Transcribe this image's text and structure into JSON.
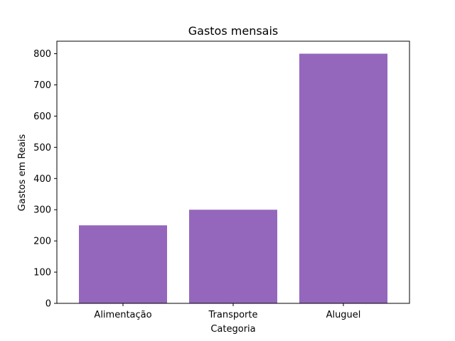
{
  "chart_data": {
    "type": "bar",
    "title": "Gastos mensais",
    "xlabel": "Categoria",
    "ylabel": "Gastos em Reais",
    "categories": [
      "Alimentação",
      "Transporte",
      "Aluguel"
    ],
    "values": [
      250,
      300,
      800
    ],
    "ylim": [
      0,
      840
    ],
    "yticks": [
      0,
      100,
      200,
      300,
      400,
      500,
      600,
      700,
      800
    ],
    "grid": false,
    "bar_color": "#9467bd"
  }
}
